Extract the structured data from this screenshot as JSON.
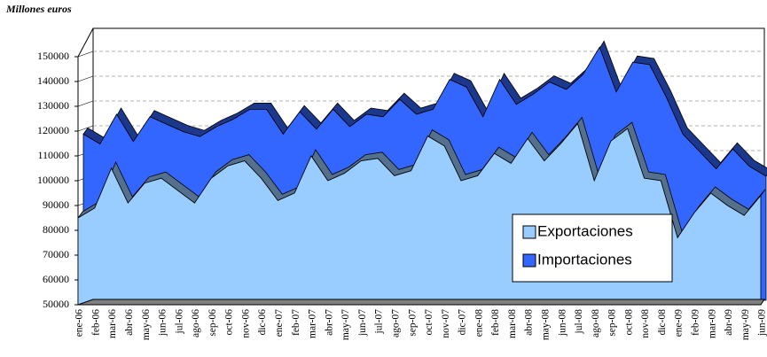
{
  "chart_data": {
    "type": "area3d",
    "ylabel": "Millones euros",
    "categories": [
      "ene-06",
      "feb-06",
      "mar-06",
      "abr-06",
      "may-06",
      "jun-06",
      "jul-06",
      "ago-06",
      "sep-06",
      "oct-06",
      "nov-06",
      "dic-06",
      "ene-07",
      "feb-07",
      "mar-07",
      "abr-07",
      "may-07",
      "jun-07",
      "jul-07",
      "ago-07",
      "sep-07",
      "oct-07",
      "nov-07",
      "dic-07",
      "ene-08",
      "feb-08",
      "mar-08",
      "abr-08",
      "may-08",
      "jun-08",
      "jul-08",
      "ago-08",
      "sep-08",
      "oct-08",
      "nov-08",
      "dic-08",
      "ene-09",
      "feb-09",
      "mar-09",
      "abr-09",
      "may-09",
      "jun-09"
    ],
    "series": [
      {
        "name": "Exportaciones",
        "color": "#99ccff",
        "values": [
          85000,
          89000,
          105000,
          91000,
          99000,
          101000,
          96000,
          91000,
          101000,
          106000,
          108000,
          101000,
          92000,
          95000,
          110000,
          100000,
          103000,
          108000,
          109000,
          102000,
          104000,
          118000,
          114000,
          100000,
          102000,
          111000,
          107000,
          117000,
          108000,
          115000,
          123000,
          100000,
          116000,
          121000,
          101000,
          100000,
          77000,
          87000,
          95000,
          90000,
          86000,
          94000
        ]
      },
      {
        "name": "Importaciones",
        "color": "#3366ff",
        "values": [
          117000,
          113000,
          125000,
          114000,
          124000,
          121000,
          118000,
          116000,
          120000,
          123000,
          127000,
          127000,
          117000,
          126000,
          119000,
          127000,
          120000,
          125000,
          124000,
          131000,
          125000,
          127000,
          139000,
          136000,
          124000,
          139000,
          129000,
          133000,
          138000,
          135000,
          141000,
          152000,
          134000,
          146000,
          145000,
          132000,
          117000,
          110000,
          103000,
          111000,
          104000,
          100000
        ]
      }
    ],
    "ylim": [
      50000,
      150000
    ],
    "yticks": [
      50000,
      60000,
      70000,
      80000,
      90000,
      100000,
      110000,
      120000,
      130000,
      140000,
      150000
    ],
    "grid": true
  }
}
